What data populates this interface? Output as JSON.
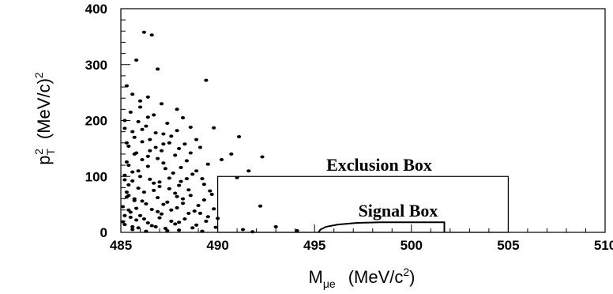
{
  "chart_data": {
    "type": "scatter",
    "title": "",
    "xlabel": {
      "main": "M",
      "sub": "μe",
      "units": "(MeV/c",
      "sup": "2",
      "close": ")"
    },
    "ylabel": {
      "main": "p",
      "sub": "T",
      "sup": "2",
      "units": "(MeV/c)",
      "units_sup": "2"
    },
    "xlim": [
      485,
      510
    ],
    "ylim": [
      0,
      400
    ],
    "xticks": [
      "485",
      "490",
      "495",
      "500",
      "505",
      "510"
    ],
    "yticks": [
      "0",
      "100",
      "200",
      "300",
      "400"
    ],
    "grid": false,
    "exclusion_box": {
      "label": "Exclusion Box",
      "x": [
        490,
        505
      ],
      "y": [
        0,
        100
      ]
    },
    "signal_box": {
      "label": "Signal Box",
      "boundary": [
        [
          495.2,
          0
        ],
        [
          495.3,
          5
        ],
        [
          495.6,
          10
        ],
        [
          496.2,
          14
        ],
        [
          497.2,
          17
        ],
        [
          498.4,
          18
        ],
        [
          500.5,
          18
        ],
        [
          501.7,
          18
        ],
        [
          501.7,
          0
        ]
      ]
    },
    "points": [
      [
        486.2,
        358
      ],
      [
        486.6,
        353
      ],
      [
        485.8,
        308
      ],
      [
        486.9,
        292
      ],
      [
        489.4,
        272
      ],
      [
        485.3,
        262
      ],
      [
        485.6,
        247
      ],
      [
        486.4,
        242
      ],
      [
        487.1,
        230
      ],
      [
        486.0,
        224
      ],
      [
        487.9,
        220
      ],
      [
        485.5,
        215
      ],
      [
        486.7,
        210
      ],
      [
        488.2,
        205
      ],
      [
        485.9,
        198
      ],
      [
        487.4,
        195
      ],
      [
        486.3,
        190
      ],
      [
        485.2,
        186
      ],
      [
        488.6,
        188
      ],
      [
        489.8,
        187
      ],
      [
        491.1,
        171
      ],
      [
        486.8,
        178
      ],
      [
        487.6,
        172
      ],
      [
        485.7,
        170
      ],
      [
        488.9,
        166
      ],
      [
        486.1,
        162
      ],
      [
        487.2,
        158
      ],
      [
        485.4,
        154
      ],
      [
        489.1,
        152
      ],
      [
        488.0,
        150
      ],
      [
        486.5,
        146
      ],
      [
        490.7,
        140
      ],
      [
        492.3,
        135
      ],
      [
        485.8,
        142
      ],
      [
        487.8,
        138
      ],
      [
        486.9,
        132
      ],
      [
        488.4,
        128
      ],
      [
        485.3,
        126
      ],
      [
        489.5,
        122
      ],
      [
        486.4,
        118
      ],
      [
        487.3,
        114
      ],
      [
        491.6,
        110
      ],
      [
        485.6,
        108
      ],
      [
        488.7,
        104
      ],
      [
        490.2,
        130
      ],
      [
        486.0,
        100
      ],
      [
        487.5,
        97
      ],
      [
        491.0,
        98
      ],
      [
        485.2,
        94
      ],
      [
        488.1,
        91
      ],
      [
        486.7,
        88
      ],
      [
        489.3,
        86
      ],
      [
        487.0,
        82
      ],
      [
        485.9,
        79
      ],
      [
        488.5,
        76
      ],
      [
        486.2,
        72
      ],
      [
        487.8,
        70
      ],
      [
        489.7,
        68
      ],
      [
        485.4,
        66
      ],
      [
        486.9,
        62
      ],
      [
        488.2,
        60
      ],
      [
        485.7,
        57
      ],
      [
        487.4,
        54
      ],
      [
        492.2,
        47
      ],
      [
        486.3,
        51
      ],
      [
        489.0,
        48
      ],
      [
        485.1,
        46
      ],
      [
        487.9,
        44
      ],
      [
        486.6,
        41
      ],
      [
        488.8,
        38
      ],
      [
        485.5,
        36
      ],
      [
        487.1,
        33
      ],
      [
        486.0,
        30
      ],
      [
        489.5,
        28
      ],
      [
        490.0,
        25
      ],
      [
        488.3,
        24
      ],
      [
        485.8,
        22
      ],
      [
        487.6,
        20
      ],
      [
        486.4,
        17
      ],
      [
        485.2,
        14
      ],
      [
        488.9,
        13
      ],
      [
        486.8,
        10
      ],
      [
        487.3,
        7
      ],
      [
        485.6,
        5
      ],
      [
        488.0,
        4
      ],
      [
        489.2,
        2
      ],
      [
        493.0,
        10
      ],
      [
        491.3,
        5
      ],
      [
        494.1,
        3
      ],
      [
        491.8,
        1
      ],
      [
        486.1,
        130
      ],
      [
        485.9,
        110
      ],
      [
        486.5,
        95
      ],
      [
        485.4,
        85
      ],
      [
        486.7,
        75
      ],
      [
        485.3,
        63
      ],
      [
        486.1,
        56
      ],
      [
        485.8,
        43
      ],
      [
        486.9,
        37
      ],
      [
        485.5,
        27
      ],
      [
        486.2,
        24
      ],
      [
        485.1,
        19
      ],
      [
        486.6,
        12
      ],
      [
        485.9,
        8
      ],
      [
        486.3,
        2
      ],
      [
        487.2,
        124
      ],
      [
        487.7,
        106
      ],
      [
        487.0,
        90
      ],
      [
        487.5,
        78
      ],
      [
        487.9,
        64
      ],
      [
        487.2,
        50
      ],
      [
        487.6,
        40
      ],
      [
        487.0,
        26
      ],
      [
        487.8,
        15
      ],
      [
        487.4,
        3
      ],
      [
        488.1,
        116
      ],
      [
        488.4,
        96
      ],
      [
        488.0,
        84
      ],
      [
        488.6,
        66
      ],
      [
        488.2,
        52
      ],
      [
        488.5,
        34
      ],
      [
        488.0,
        18
      ],
      [
        488.7,
        8
      ],
      [
        485.2,
        200
      ],
      [
        485.6,
        180
      ],
      [
        485.3,
        160
      ],
      [
        485.7,
        140
      ],
      [
        485.4,
        120
      ],
      [
        485.2,
        102
      ],
      [
        485.6,
        92
      ],
      [
        485.3,
        72
      ],
      [
        485.7,
        60
      ],
      [
        485.4,
        40
      ],
      [
        485.2,
        30
      ],
      [
        485.6,
        10
      ],
      [
        486.0,
        235
      ],
      [
        486.4,
        206
      ],
      [
        486.1,
        184
      ],
      [
        486.5,
        166
      ],
      [
        486.8,
        152
      ],
      [
        486.4,
        136
      ],
      [
        487.1,
        146
      ],
      [
        487.5,
        160
      ],
      [
        487.2,
        176
      ],
      [
        487.9,
        182
      ],
      [
        488.3,
        158
      ],
      [
        488.6,
        142
      ],
      [
        488.9,
        110
      ],
      [
        489.2,
        96
      ],
      [
        489.6,
        74
      ],
      [
        489.3,
        58
      ],
      [
        489.8,
        42
      ],
      [
        489.4,
        20
      ],
      [
        489.9,
        9
      ],
      [
        489.1,
        34
      ]
    ]
  }
}
